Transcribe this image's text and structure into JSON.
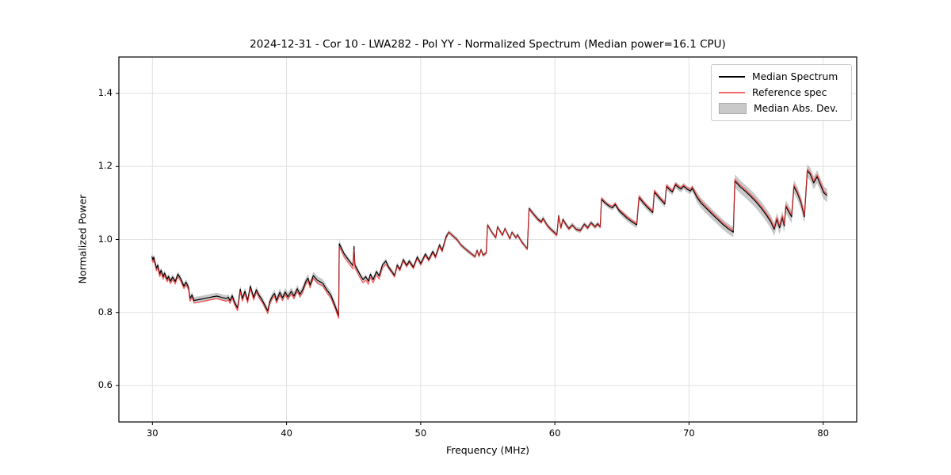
{
  "title": "2024-12-31 - Cor 10 - LWA282 - Pol YY - Normalized Spectrum (Median power=16.1 CPU)",
  "legend": {
    "position": "upper right",
    "entries": [
      {
        "label": "Median Spectrum",
        "type": "line",
        "color": "#000000"
      },
      {
        "label": "Reference spec",
        "type": "line",
        "color": "#f36a6a"
      },
      {
        "label": "Median Abs. Dev.",
        "type": "patch",
        "color": "#c9c9c9"
      }
    ]
  },
  "chart_data": {
    "type": "line",
    "title": "2024-12-31 - Cor 10 - LWA282 - Pol YY - Normalized Spectrum (Median power=16.1 CPU)",
    "xlabel": "Frequency (MHz)",
    "ylabel": "Normalized Power",
    "xlim": [
      27.5,
      82.5
    ],
    "ylim": [
      0.5,
      1.5
    ],
    "grid": true,
    "grid_color": "#e2e2e2",
    "xticks": [
      {
        "value": 30,
        "label": "30"
      },
      {
        "value": 40,
        "label": "40"
      },
      {
        "value": 50,
        "label": "50"
      },
      {
        "value": 60,
        "label": "60"
      },
      {
        "value": 70,
        "label": "70"
      },
      {
        "value": 80,
        "label": "80"
      }
    ],
    "yticks": [
      {
        "value": 0.6,
        "label": "0.6"
      },
      {
        "value": 0.8,
        "label": "0.8"
      },
      {
        "value": 1.0,
        "label": "1.0"
      },
      {
        "value": 1.2,
        "label": "1.2"
      },
      {
        "value": 1.4,
        "label": "1.4"
      }
    ],
    "series": [
      {
        "name": "Median Spectrum",
        "color": "#000000",
        "linewidth": 1.2,
        "points": [
          [
            29.95,
            0.953
          ],
          [
            30.05,
            0.944
          ],
          [
            30.1,
            0.952
          ],
          [
            30.3,
            0.921
          ],
          [
            30.4,
            0.93
          ],
          [
            30.55,
            0.905
          ],
          [
            30.65,
            0.916
          ],
          [
            30.8,
            0.898
          ],
          [
            30.9,
            0.908
          ],
          [
            31.1,
            0.891
          ],
          [
            31.2,
            0.899
          ],
          [
            31.35,
            0.886
          ],
          [
            31.5,
            0.897
          ],
          [
            31.7,
            0.885
          ],
          [
            31.9,
            0.905
          ],
          [
            32.1,
            0.893
          ],
          [
            32.35,
            0.872
          ],
          [
            32.5,
            0.883
          ],
          [
            32.7,
            0.869
          ],
          [
            32.8,
            0.838
          ],
          [
            32.95,
            0.848
          ],
          [
            33.1,
            0.833
          ],
          [
            33.4,
            0.835
          ],
          [
            33.7,
            0.837
          ],
          [
            34.1,
            0.84
          ],
          [
            34.5,
            0.843
          ],
          [
            34.8,
            0.845
          ],
          [
            35.2,
            0.841
          ],
          [
            35.5,
            0.838
          ],
          [
            35.65,
            0.842
          ],
          [
            35.78,
            0.832
          ],
          [
            35.95,
            0.846
          ],
          [
            36.15,
            0.826
          ],
          [
            36.35,
            0.812
          ],
          [
            36.55,
            0.864
          ],
          [
            36.7,
            0.838
          ],
          [
            36.9,
            0.858
          ],
          [
            37.1,
            0.833
          ],
          [
            37.3,
            0.872
          ],
          [
            37.55,
            0.841
          ],
          [
            37.75,
            0.862
          ],
          [
            37.95,
            0.847
          ],
          [
            38.2,
            0.833
          ],
          [
            38.45,
            0.815
          ],
          [
            38.6,
            0.804
          ],
          [
            38.75,
            0.83
          ],
          [
            38.95,
            0.845
          ],
          [
            39.1,
            0.852
          ],
          [
            39.25,
            0.833
          ],
          [
            39.5,
            0.855
          ],
          [
            39.7,
            0.84
          ],
          [
            39.9,
            0.856
          ],
          [
            40.1,
            0.843
          ],
          [
            40.35,
            0.858
          ],
          [
            40.55,
            0.845
          ],
          [
            40.8,
            0.865
          ],
          [
            41.0,
            0.85
          ],
          [
            41.2,
            0.862
          ],
          [
            41.45,
            0.886
          ],
          [
            41.6,
            0.894
          ],
          [
            41.75,
            0.875
          ],
          [
            42.0,
            0.901
          ],
          [
            42.3,
            0.888
          ],
          [
            42.7,
            0.88
          ],
          [
            43.0,
            0.862
          ],
          [
            43.3,
            0.847
          ],
          [
            43.6,
            0.82
          ],
          [
            43.88,
            0.791
          ],
          [
            43.93,
            0.988
          ],
          [
            44.3,
            0.96
          ],
          [
            44.6,
            0.945
          ],
          [
            44.95,
            0.928
          ],
          [
            45.03,
            0.981
          ],
          [
            45.1,
            0.93
          ],
          [
            45.3,
            0.916
          ],
          [
            45.5,
            0.902
          ],
          [
            45.7,
            0.89
          ],
          [
            45.9,
            0.898
          ],
          [
            46.1,
            0.886
          ],
          [
            46.25,
            0.905
          ],
          [
            46.45,
            0.89
          ],
          [
            46.7,
            0.912
          ],
          [
            46.9,
            0.9
          ],
          [
            47.15,
            0.93
          ],
          [
            47.4,
            0.941
          ],
          [
            47.6,
            0.925
          ],
          [
            47.85,
            0.912
          ],
          [
            48.05,
            0.901
          ],
          [
            48.25,
            0.93
          ],
          [
            48.45,
            0.918
          ],
          [
            48.7,
            0.945
          ],
          [
            48.95,
            0.929
          ],
          [
            49.15,
            0.941
          ],
          [
            49.45,
            0.924
          ],
          [
            49.75,
            0.952
          ],
          [
            50.0,
            0.934
          ],
          [
            50.35,
            0.96
          ],
          [
            50.6,
            0.945
          ],
          [
            50.9,
            0.967
          ],
          [
            51.1,
            0.953
          ],
          [
            51.4,
            0.985
          ],
          [
            51.6,
            0.97
          ],
          [
            51.9,
            1.008
          ],
          [
            52.1,
            1.02
          ],
          [
            52.4,
            1.01
          ],
          [
            52.7,
            1.0
          ],
          [
            53.0,
            0.985
          ],
          [
            53.4,
            0.972
          ],
          [
            53.8,
            0.96
          ],
          [
            54.05,
            0.953
          ],
          [
            54.2,
            0.97
          ],
          [
            54.35,
            0.955
          ],
          [
            54.5,
            0.972
          ],
          [
            54.65,
            0.957
          ],
          [
            54.88,
            0.963
          ],
          [
            54.98,
            1.04
          ],
          [
            55.3,
            1.02
          ],
          [
            55.6,
            1.005
          ],
          [
            55.72,
            1.035
          ],
          [
            56.1,
            1.012
          ],
          [
            56.28,
            1.03
          ],
          [
            56.65,
            1.002
          ],
          [
            56.8,
            1.02
          ],
          [
            57.1,
            1.005
          ],
          [
            57.22,
            1.013
          ],
          [
            57.5,
            0.995
          ],
          [
            57.95,
            0.974
          ],
          [
            58.08,
            1.085
          ],
          [
            58.45,
            1.068
          ],
          [
            58.75,
            1.055
          ],
          [
            59.0,
            1.048
          ],
          [
            59.12,
            1.058
          ],
          [
            59.45,
            1.038
          ],
          [
            59.7,
            1.028
          ],
          [
            60.0,
            1.018
          ],
          [
            60.15,
            1.013
          ],
          [
            60.28,
            1.065
          ],
          [
            60.45,
            1.032
          ],
          [
            60.6,
            1.055
          ],
          [
            60.85,
            1.04
          ],
          [
            61.05,
            1.03
          ],
          [
            61.3,
            1.04
          ],
          [
            61.6,
            1.028
          ],
          [
            61.9,
            1.025
          ],
          [
            62.2,
            1.042
          ],
          [
            62.45,
            1.032
          ],
          [
            62.7,
            1.046
          ],
          [
            63.0,
            1.035
          ],
          [
            63.2,
            1.043
          ],
          [
            63.38,
            1.035
          ],
          [
            63.48,
            1.11
          ],
          [
            63.8,
            1.098
          ],
          [
            64.1,
            1.09
          ],
          [
            64.3,
            1.087
          ],
          [
            64.5,
            1.096
          ],
          [
            64.8,
            1.078
          ],
          [
            65.1,
            1.068
          ],
          [
            65.4,
            1.058
          ],
          [
            65.8,
            1.047
          ],
          [
            66.1,
            1.04
          ],
          [
            66.28,
            1.115
          ],
          [
            66.6,
            1.1
          ],
          [
            66.9,
            1.088
          ],
          [
            67.3,
            1.074
          ],
          [
            67.42,
            1.13
          ],
          [
            67.8,
            1.113
          ],
          [
            68.2,
            1.097
          ],
          [
            68.32,
            1.145
          ],
          [
            68.6,
            1.135
          ],
          [
            68.75,
            1.13
          ],
          [
            69.0,
            1.15
          ],
          [
            69.2,
            1.143
          ],
          [
            69.4,
            1.138
          ],
          [
            69.6,
            1.146
          ],
          [
            69.85,
            1.138
          ],
          [
            70.1,
            1.133
          ],
          [
            70.25,
            1.14
          ],
          [
            70.6,
            1.115
          ],
          [
            70.9,
            1.1
          ],
          [
            71.3,
            1.085
          ],
          [
            71.7,
            1.07
          ],
          [
            72.1,
            1.056
          ],
          [
            72.5,
            1.042
          ],
          [
            72.9,
            1.03
          ],
          [
            73.3,
            1.02
          ],
          [
            73.42,
            1.16
          ],
          [
            73.8,
            1.145
          ],
          [
            74.2,
            1.132
          ],
          [
            74.6,
            1.118
          ],
          [
            75.0,
            1.103
          ],
          [
            75.4,
            1.085
          ],
          [
            75.8,
            1.065
          ],
          [
            76.1,
            1.048
          ],
          [
            76.35,
            1.028
          ],
          [
            76.55,
            1.055
          ],
          [
            76.75,
            1.032
          ],
          [
            76.95,
            1.06
          ],
          [
            77.1,
            1.037
          ],
          [
            77.22,
            1.09
          ],
          [
            77.45,
            1.075
          ],
          [
            77.65,
            1.062
          ],
          [
            77.82,
            1.145
          ],
          [
            78.1,
            1.125
          ],
          [
            78.35,
            1.1
          ],
          [
            78.6,
            1.062
          ],
          [
            78.82,
            1.188
          ],
          [
            79.05,
            1.178
          ],
          [
            79.3,
            1.155
          ],
          [
            79.55,
            1.172
          ],
          [
            79.8,
            1.15
          ],
          [
            80.05,
            1.128
          ],
          [
            80.3,
            1.12
          ]
        ]
      },
      {
        "name": "Reference spec",
        "color": "rgba(255,42,42,0.75)",
        "linewidth": 1.2,
        "derived_from": "Median Spectrum",
        "offset_segments": [
          {
            "from": 27.5,
            "to": 43.95,
            "delta": -0.007
          },
          {
            "from": 43.95,
            "to": 47.5,
            "delta": -0.009
          },
          {
            "from": 47.5,
            "to": 52.0,
            "delta": -0.004
          },
          {
            "from": 52.0,
            "to": 58.0,
            "delta": -0.001
          },
          {
            "from": 58.0,
            "to": 63.4,
            "delta": -0.002
          },
          {
            "from": 63.4,
            "to": 70.0,
            "delta": 0.004
          },
          {
            "from": 70.0,
            "to": 82.5,
            "delta": 0.005
          }
        ]
      },
      {
        "name": "Median Abs. Dev.",
        "type": "band",
        "color": "rgba(110,110,110,0.38)",
        "around": "Median Spectrum",
        "halfwidth_segments": [
          {
            "from": 27.5,
            "to": 33.0,
            "halfwidth": 0.008
          },
          {
            "from": 33.0,
            "to": 39.0,
            "halfwidth": 0.009
          },
          {
            "from": 39.0,
            "to": 44.0,
            "halfwidth": 0.011
          },
          {
            "from": 44.0,
            "to": 52.0,
            "halfwidth": 0.007
          },
          {
            "from": 52.0,
            "to": 58.0,
            "halfwidth": 0.006
          },
          {
            "from": 58.0,
            "to": 65.0,
            "halfwidth": 0.007
          },
          {
            "from": 65.0,
            "to": 70.5,
            "halfwidth": 0.009
          },
          {
            "from": 70.5,
            "to": 73.4,
            "halfwidth": 0.014
          },
          {
            "from": 73.4,
            "to": 82.5,
            "halfwidth": 0.018
          }
        ]
      }
    ]
  }
}
